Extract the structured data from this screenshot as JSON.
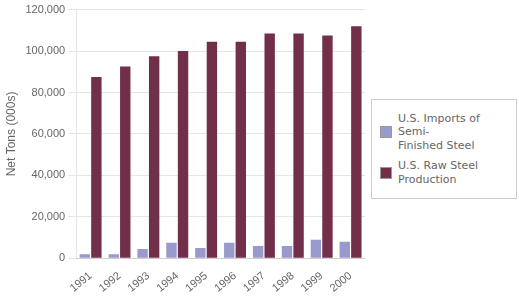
{
  "chart_data": {
    "type": "bar",
    "categories": [
      "1991",
      "1992",
      "1993",
      "1994",
      "1995",
      "1996",
      "1997",
      "1998",
      "1999",
      "2000"
    ],
    "series": [
      {
        "name": "U.S. Imports of Semi-\nFinished Steel",
        "color": "#9999CC",
        "values": [
          2000,
          2000,
          4500,
          7500,
          5000,
          7500,
          6000,
          6000,
          9000,
          8000
        ]
      },
      {
        "name": "U.S. Raw Steel\nProduction",
        "color": "#722F4A",
        "values": [
          87500,
          92500,
          97500,
          100000,
          104500,
          104500,
          108500,
          108500,
          107500,
          112000
        ]
      }
    ],
    "y_label": "Net Tons (000s)",
    "ylim": [
      0,
      120000
    ],
    "yticks": [
      0,
      {
        "value": 20000,
        "label": "20,000"
      },
      {
        "value": 40000,
        "label": "40,000"
      },
      {
        "value": 60000,
        "label": "60,000"
      },
      {
        "value": 80000,
        "label": "80,000"
      },
      {
        "value": 100000,
        "label": "100,000"
      },
      {
        "value": 120000,
        "label": "120,000"
      }
    ],
    "grid": true,
    "legend": "right"
  }
}
